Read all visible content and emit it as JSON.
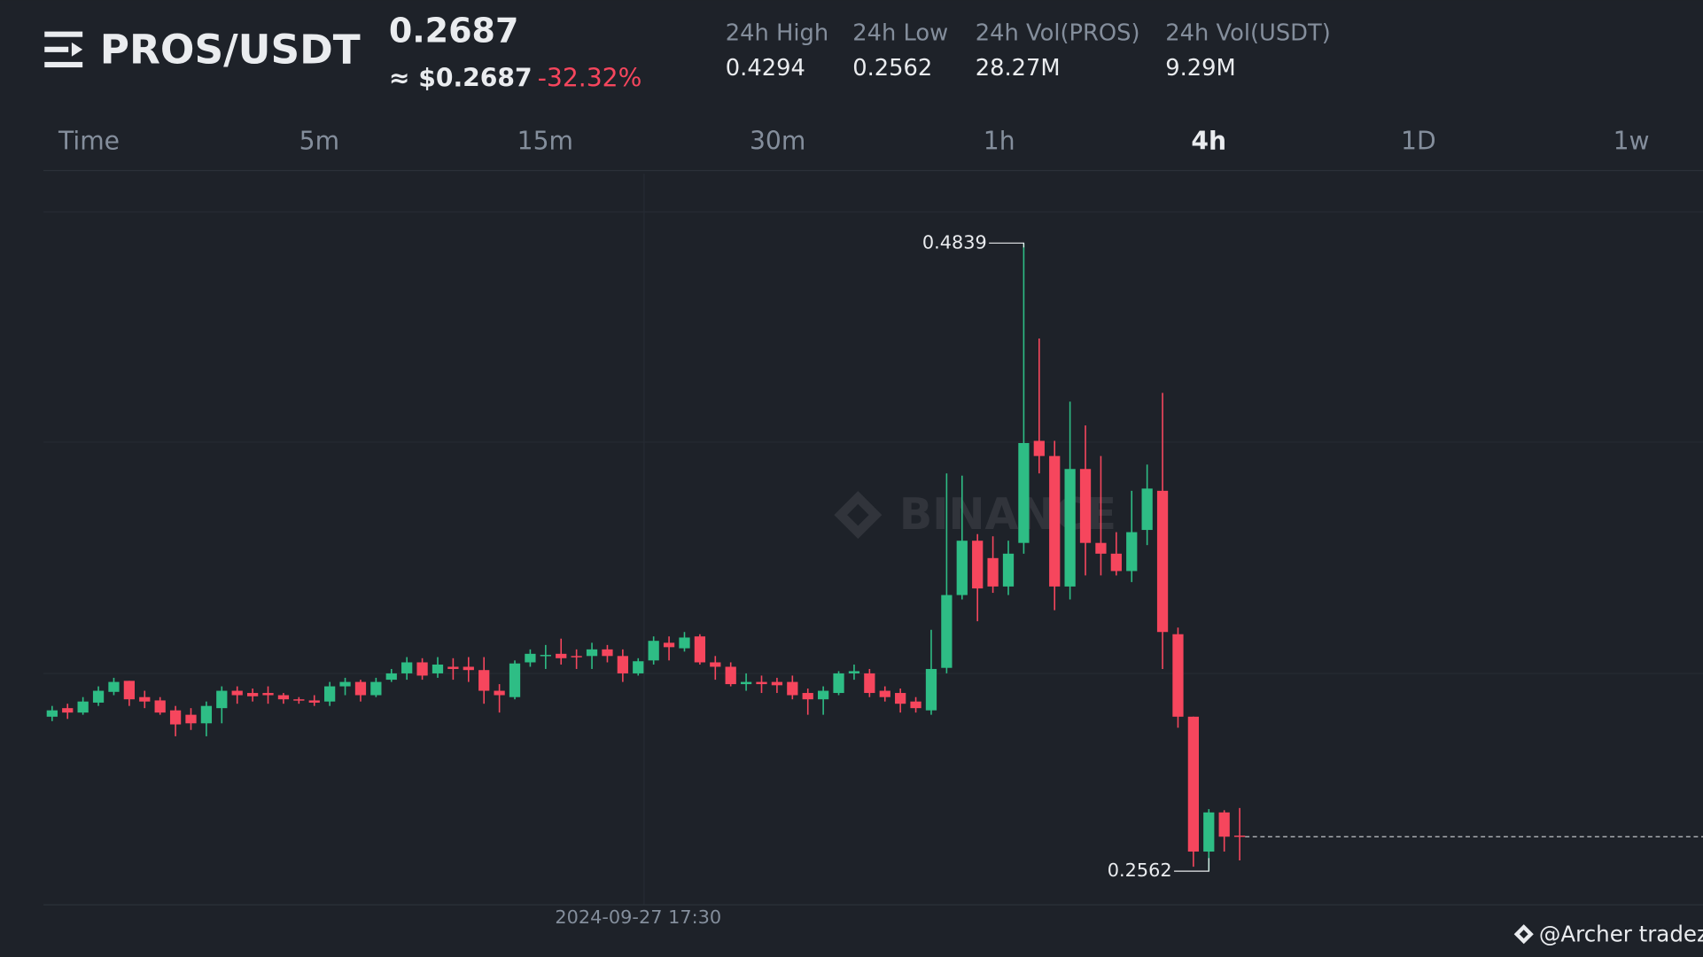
{
  "header": {
    "pair": "PROS/USDT",
    "price": "0.2687",
    "usd_price": "≈ $0.2687",
    "change": "-32.32%",
    "stats": [
      {
        "label": "24h High",
        "value": "0.4294"
      },
      {
        "label": "24h Low",
        "value": "0.2562"
      },
      {
        "label": "24h Vol(PROS)",
        "value": "28.27M"
      },
      {
        "label": "24h Vol(USDT)",
        "value": "9.29M"
      }
    ]
  },
  "timeframes": [
    "Time",
    "5m",
    "15m",
    "30m",
    "1h",
    "4h",
    "1D",
    "1w"
  ],
  "active_timeframe": "4h",
  "watermark": "BINANCE",
  "credit": "@Archer tradez",
  "chart_data": {
    "type": "candlestick",
    "categories": [
      null,
      null,
      null,
      null,
      null,
      null,
      null,
      null,
      null,
      null,
      null,
      null,
      null,
      null,
      null,
      null,
      null,
      null,
      null,
      null,
      null,
      null,
      null,
      null,
      null,
      null,
      null,
      null,
      null,
      null,
      null,
      null,
      null,
      null,
      null,
      null,
      null,
      null,
      "2024-09-27 17:30",
      null,
      null,
      null,
      null,
      null,
      null,
      null,
      null,
      null,
      null,
      null,
      null,
      null,
      null,
      null,
      null,
      null,
      null,
      null,
      null,
      null,
      null,
      null,
      null,
      null,
      null,
      null,
      null,
      null,
      null,
      null,
      null,
      null,
      null,
      null,
      null,
      null,
      null,
      null
    ],
    "open": [
      0.3122,
      0.3153,
      0.3137,
      0.3173,
      0.3212,
      0.3252,
      0.3193,
      0.3181,
      0.3145,
      0.3129,
      0.3098,
      0.3153,
      0.3216,
      0.3208,
      0.3208,
      0.32,
      0.3185,
      0.3181,
      0.3177,
      0.3232,
      0.3248,
      0.32,
      0.3256,
      0.3279,
      0.3319,
      0.3279,
      0.3303,
      0.3303,
      0.3291,
      0.3216,
      0.3193,
      0.3319,
      0.3342,
      0.335,
      0.3342,
      0.3342,
      0.3366,
      0.3342,
      0.3279,
      0.3326,
      0.339,
      0.337,
      0.3413,
      0.3319,
      0.3303,
      0.324,
      0.3248,
      0.3248,
      0.3248,
      0.3208,
      0.3185,
      0.3208,
      0.3279,
      0.3279,
      0.3216,
      0.3208,
      0.3177,
      0.3145,
      0.3299,
      0.3563,
      0.376,
      0.3697,
      0.3594,
      0.3752,
      0.4122,
      0.4067,
      0.3594,
      0.402,
      0.3752,
      0.3713,
      0.365,
      0.3799,
      0.3941,
      0.3421,
      0.3122,
      0.2633,
      0.2775,
      0.2691
    ],
    "high": [
      0.3161,
      0.3169,
      0.3193,
      0.3232,
      0.3263,
      0.3252,
      0.3216,
      0.3193,
      0.3161,
      0.3153,
      0.3177,
      0.3232,
      0.3232,
      0.3224,
      0.3232,
      0.3208,
      0.3193,
      0.32,
      0.3248,
      0.3263,
      0.3256,
      0.3263,
      0.3295,
      0.3338,
      0.3334,
      0.3338,
      0.3334,
      0.3338,
      0.3338,
      0.324,
      0.3326,
      0.3366,
      0.3382,
      0.3405,
      0.3366,
      0.339,
      0.3382,
      0.3366,
      0.3334,
      0.3413,
      0.3413,
      0.3429,
      0.3421,
      0.3342,
      0.3319,
      0.3279,
      0.3271,
      0.3263,
      0.3271,
      0.3224,
      0.3232,
      0.3287,
      0.3311,
      0.3295,
      0.3232,
      0.3224,
      0.3193,
      0.3437,
      0.4004,
      0.3996,
      0.3784,
      0.3776,
      0.376,
      0.4839,
      0.4493,
      0.4122,
      0.4264,
      0.4178,
      0.4067,
      0.3791,
      0.3941,
      0.4036,
      0.4296,
      0.3445,
      0.3122,
      0.2787,
      0.2783,
      0.2791
    ],
    "low": [
      0.3106,
      0.3114,
      0.3129,
      0.3161,
      0.32,
      0.3161,
      0.3153,
      0.3129,
      0.3051,
      0.3074,
      0.3051,
      0.3098,
      0.3169,
      0.3177,
      0.3169,
      0.3169,
      0.3169,
      0.3161,
      0.3161,
      0.32,
      0.3177,
      0.3193,
      0.3248,
      0.3256,
      0.3256,
      0.3263,
      0.3256,
      0.3248,
      0.3169,
      0.3137,
      0.3185,
      0.3303,
      0.3295,
      0.3311,
      0.3295,
      0.3295,
      0.3319,
      0.3248,
      0.3271,
      0.3311,
      0.3326,
      0.3358,
      0.3311,
      0.3256,
      0.3232,
      0.3216,
      0.3208,
      0.3208,
      0.3185,
      0.3129,
      0.3129,
      0.32,
      0.3256,
      0.3193,
      0.3177,
      0.3137,
      0.3137,
      0.3129,
      0.3279,
      0.3547,
      0.3468,
      0.3571,
      0.3563,
      0.3713,
      0.4004,
      0.3508,
      0.3547,
      0.3634,
      0.3634,
      0.3634,
      0.361,
      0.3744,
      0.3295,
      0.3082,
      0.2578,
      0.2562,
      0.2633,
      0.2601
    ],
    "close": [
      0.3145,
      0.3137,
      0.3177,
      0.3216,
      0.3248,
      0.3185,
      0.3177,
      0.3137,
      0.3094,
      0.3098,
      0.3161,
      0.3216,
      0.32,
      0.3196,
      0.32,
      0.3185,
      0.3181,
      0.3173,
      0.3232,
      0.3248,
      0.32,
      0.3248,
      0.3279,
      0.3319,
      0.3271,
      0.3311,
      0.3295,
      0.3291,
      0.3216,
      0.32,
      0.3315,
      0.335,
      0.3346,
      0.3334,
      0.3338,
      0.3366,
      0.3342,
      0.3279,
      0.3323,
      0.3397,
      0.3374,
      0.3409,
      0.3319,
      0.3303,
      0.324,
      0.3248,
      0.324,
      0.3236,
      0.32,
      0.3185,
      0.3216,
      0.3279,
      0.3287,
      0.3208,
      0.3193,
      0.3169,
      0.3153,
      0.3295,
      0.3563,
      0.376,
      0.3587,
      0.3594,
      0.3713,
      0.4114,
      0.4067,
      0.3594,
      0.402,
      0.3752,
      0.3713,
      0.365,
      0.3791,
      0.3949,
      0.3429,
      0.3122,
      0.2633,
      0.2775,
      0.2687,
      0.2687
    ],
    "ylim": [
      0.244,
      0.509
    ],
    "up_color": "#2ebd85",
    "down_color": "#f6465d",
    "last_price_line": true
  }
}
